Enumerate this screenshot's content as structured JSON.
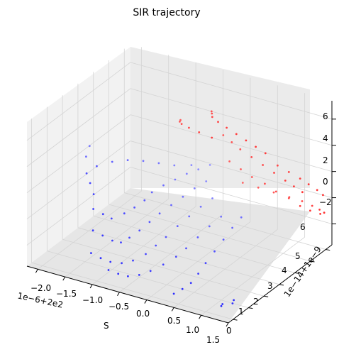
{
  "chart_data": {
    "type": "scatter",
    "projection": "3d",
    "title": "SIR trajectory",
    "xlabel": "S",
    "ylabel": "",
    "zlabel": "",
    "x_offset_label": "1e−6+2e2",
    "y_offset_label": "1e−14+1e−9",
    "x_ticks": [
      "−2.0",
      "−1.5",
      "−1.0",
      "−0.5",
      "0.0",
      "0.5",
      "1.0",
      "1.5"
    ],
    "y_ticks": [
      "0",
      "1",
      "2",
      "3",
      "4",
      "5",
      "6"
    ],
    "z_ticks": [
      "−2",
      "0",
      "2",
      "4",
      "6"
    ],
    "xlim": [
      -2.2,
      1.5
    ],
    "ylim": [
      -0.3,
      6.4
    ],
    "zlim": [
      -3.6,
      7.4
    ],
    "grid": true,
    "colormap": "bwr",
    "series": [
      {
        "values_note": "",
        "points": [
          [
            -2.05,
            3.0,
            2.0
          ],
          [
            -2.1,
            3.4,
            2.4
          ],
          [
            -1.35,
            1.0,
            0.6
          ],
          [
            -1.2,
            1.1,
            0.3
          ],
          [
            -1.1,
            1.3,
            -0.1
          ],
          [
            -0.95,
            1.6,
            0.2
          ],
          [
            -0.85,
            1.9,
            0.5
          ],
          [
            -0.75,
            2.2,
            0.9
          ],
          [
            -0.7,
            2.5,
            1.3
          ],
          [
            -0.6,
            2.9,
            1.6
          ],
          [
            -0.5,
            3.3,
            1.8
          ],
          [
            -0.4,
            3.7,
            2.0
          ],
          [
            -0.3,
            4.1,
            2.1
          ],
          [
            -0.2,
            4.5,
            2.2
          ],
          [
            -1.3,
            0.8,
            -0.8
          ],
          [
            -1.15,
            0.9,
            -1.1
          ],
          [
            -1.0,
            1.0,
            -1.4
          ],
          [
            -0.9,
            1.2,
            -1.6
          ],
          [
            -0.8,
            1.4,
            -1.3
          ],
          [
            -0.7,
            1.7,
            -0.9
          ],
          [
            -0.6,
            2.0,
            -0.4
          ],
          [
            -0.5,
            2.3,
            0.1
          ],
          [
            -0.4,
            2.7,
            0.5
          ],
          [
            -0.3,
            3.1,
            0.9
          ],
          [
            -0.2,
            3.5,
            1.3
          ],
          [
            -0.1,
            3.9,
            1.6
          ],
          [
            -1.25,
            0.5,
            -2.2
          ],
          [
            -1.1,
            0.6,
            -2.5
          ],
          [
            -0.95,
            0.7,
            -2.7
          ],
          [
            -0.8,
            0.9,
            -2.8
          ],
          [
            -0.65,
            1.1,
            -2.6
          ],
          [
            -0.5,
            1.4,
            -2.2
          ],
          [
            -0.4,
            1.7,
            -1.7
          ],
          [
            -0.3,
            2.0,
            -1.2
          ],
          [
            -0.2,
            2.4,
            -0.6
          ],
          [
            -0.1,
            2.8,
            -0.1
          ],
          [
            0.0,
            3.2,
            0.4
          ],
          [
            0.1,
            3.6,
            0.8
          ],
          [
            -1.4,
            1.2,
            1.5
          ],
          [
            -1.55,
            1.5,
            1.9
          ],
          [
            -1.7,
            1.8,
            2.2
          ],
          [
            -1.6,
            2.1,
            2.6
          ],
          [
            -1.4,
            2.4,
            2.9
          ],
          [
            -1.2,
            2.7,
            3.0
          ],
          [
            -1.0,
            3.0,
            2.9
          ],
          [
            -0.8,
            3.3,
            2.7
          ],
          [
            -0.6,
            3.6,
            2.5
          ],
          [
            -0.4,
            4.0,
            2.4
          ],
          [
            -0.9,
            0.4,
            -3.0
          ],
          [
            -0.75,
            0.5,
            -3.2
          ],
          [
            -0.6,
            0.6,
            -3.3
          ],
          [
            -0.45,
            0.8,
            -3.2
          ],
          [
            -0.3,
            1.0,
            -2.9
          ],
          [
            -0.15,
            1.3,
            -2.5
          ],
          [
            0.0,
            1.6,
            -2.0
          ],
          [
            0.1,
            1.9,
            -1.5
          ],
          [
            0.2,
            2.3,
            -0.9
          ],
          [
            0.3,
            2.7,
            -0.3
          ],
          [
            0.4,
            3.1,
            0.2
          ],
          [
            0.3,
            0.4,
            -3.4
          ],
          [
            0.4,
            0.6,
            -3.1
          ],
          [
            0.5,
            0.8,
            -2.7
          ],
          [
            0.55,
            1.1,
            -2.2
          ],
          [
            0.6,
            1.4,
            -1.6
          ],
          [
            0.65,
            1.8,
            -1.0
          ],
          [
            0.7,
            2.2,
            -0.4
          ],
          [
            0.75,
            2.6,
            0.2
          ],
          [
            0.8,
            3.0,
            0.7
          ],
          [
            1.2,
            0.3,
            -3.2
          ],
          [
            1.25,
            0.2,
            -2.9
          ],
          [
            1.35,
            0.5,
            -3.0
          ],
          [
            1.4,
            0.4,
            -2.6
          ]
        ]
      },
      {
        "values_note": "",
        "points": [
          [
            -0.2,
            4.6,
            6.2
          ],
          [
            -0.25,
            4.8,
            5.8
          ],
          [
            -0.3,
            5.0,
            5.3
          ],
          [
            -0.25,
            5.2,
            4.8
          ],
          [
            -0.15,
            5.4,
            4.3
          ],
          [
            0.0,
            5.5,
            3.9
          ],
          [
            0.15,
            5.6,
            3.5
          ],
          [
            0.3,
            5.7,
            3.1
          ],
          [
            0.45,
            5.8,
            2.7
          ],
          [
            0.1,
            4.3,
            5.0
          ],
          [
            0.2,
            4.5,
            4.4
          ],
          [
            0.3,
            4.7,
            3.8
          ],
          [
            0.45,
            4.9,
            3.2
          ],
          [
            0.6,
            5.1,
            2.6
          ],
          [
            0.75,
            5.3,
            2.0
          ],
          [
            0.9,
            5.5,
            1.4
          ],
          [
            1.0,
            5.7,
            0.9
          ],
          [
            1.1,
            5.9,
            0.4
          ],
          [
            0.3,
            4.0,
            3.5
          ],
          [
            0.45,
            4.2,
            2.9
          ],
          [
            0.6,
            4.4,
            2.3
          ],
          [
            0.75,
            4.7,
            1.7
          ],
          [
            0.9,
            4.9,
            1.1
          ],
          [
            1.05,
            5.2,
            0.5
          ],
          [
            1.2,
            5.4,
            -0.1
          ],
          [
            1.3,
            5.7,
            -0.6
          ],
          [
            1.4,
            6.0,
            -1.0
          ],
          [
            0.6,
            3.8,
            2.4
          ],
          [
            0.8,
            4.1,
            2.0
          ],
          [
            1.0,
            4.4,
            1.6
          ],
          [
            1.2,
            4.7,
            1.2
          ],
          [
            1.35,
            5.0,
            0.8
          ],
          [
            1.45,
            5.3,
            0.3
          ],
          [
            1.5,
            5.6,
            -0.2
          ],
          [
            1.5,
            5.9,
            -0.7
          ],
          [
            -0.6,
            4.0,
            5.6
          ],
          [
            -0.7,
            4.3,
            5.1
          ],
          [
            -0.75,
            4.6,
            4.6
          ],
          [
            -0.7,
            4.9,
            4.1
          ],
          [
            -0.6,
            5.2,
            3.6
          ],
          [
            -0.45,
            5.5,
            3.1
          ],
          [
            0.9,
            5.0,
            3.0
          ],
          [
            1.05,
            5.2,
            2.5
          ],
          [
            1.2,
            5.4,
            2.0
          ],
          [
            1.3,
            5.6,
            1.5
          ],
          [
            1.4,
            5.8,
            1.0
          ],
          [
            1.45,
            6.0,
            0.5
          ]
        ]
      }
    ]
  }
}
